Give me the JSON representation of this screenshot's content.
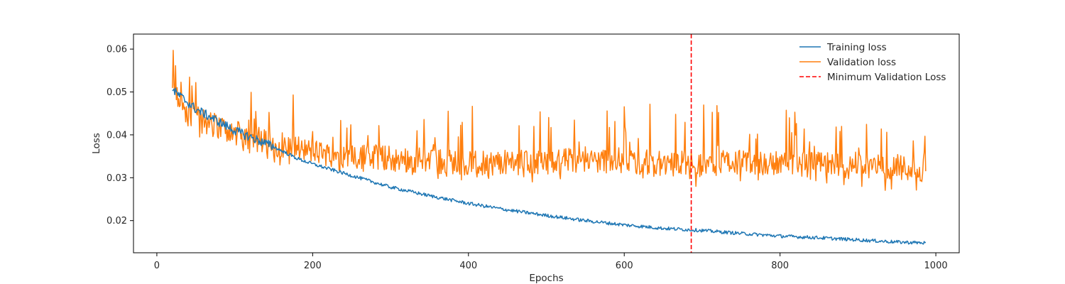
{
  "chart_data": {
    "type": "line",
    "title": "",
    "xlabel": "Epochs",
    "ylabel": "Loss",
    "xlim": [
      -30,
      1030
    ],
    "ylim": [
      0.0125,
      0.0635
    ],
    "xticks": [
      0,
      200,
      400,
      600,
      800,
      1000
    ],
    "yticks": [
      0.02,
      0.03,
      0.04,
      0.05,
      0.06
    ],
    "xtick_labels": [
      "0",
      "200",
      "400",
      "600",
      "800",
      "1000"
    ],
    "ytick_labels": [
      "0.02",
      "0.03",
      "0.04",
      "0.05",
      "0.06"
    ],
    "grid": false,
    "legend_position": "top-right",
    "x_range": [
      20,
      987
    ],
    "series": [
      {
        "name": "Training loss",
        "color": "#1f77b4",
        "x": [
          20,
          30,
          40,
          50,
          60,
          80,
          100,
          120,
          150,
          180,
          200,
          250,
          300,
          350,
          400,
          450,
          500,
          550,
          600,
          650,
          700,
          750,
          800,
          850,
          900,
          950,
          987
        ],
        "values": [
          0.0505,
          0.049,
          0.0475,
          0.046,
          0.045,
          0.043,
          0.041,
          0.0395,
          0.0372,
          0.0345,
          0.0332,
          0.0305,
          0.0278,
          0.0258,
          0.024,
          0.0225,
          0.0212,
          0.02,
          0.019,
          0.0182,
          0.0177,
          0.017,
          0.0164,
          0.016,
          0.0155,
          0.015,
          0.0148
        ]
      },
      {
        "name": "Validation loss",
        "color": "#ff7f0e",
        "x": [
          20,
          30,
          40,
          50,
          60,
          80,
          100,
          120,
          150,
          180,
          200,
          250,
          300,
          350,
          400,
          450,
          500,
          550,
          600,
          650,
          700,
          750,
          800,
          850,
          900,
          950,
          987
        ],
        "values": [
          0.05,
          0.048,
          0.045,
          0.044,
          0.043,
          0.042,
          0.0405,
          0.039,
          0.038,
          0.037,
          0.036,
          0.035,
          0.0345,
          0.034,
          0.0335,
          0.0335,
          0.034,
          0.034,
          0.034,
          0.0335,
          0.0335,
          0.0335,
          0.0335,
          0.033,
          0.033,
          0.0325,
          0.032
        ]
      },
      {
        "name": "Minimum Validation Loss",
        "color": "#ff0000",
        "style": "dashed",
        "x_value": 686
      }
    ]
  }
}
